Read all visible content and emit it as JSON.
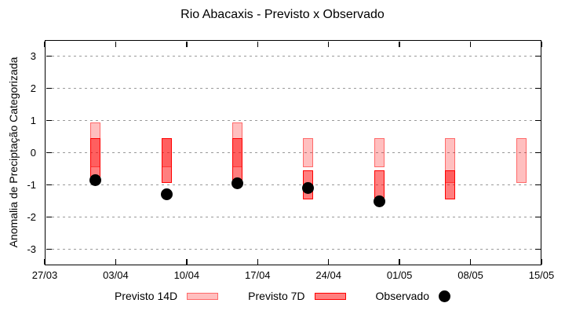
{
  "title": "Rio Abacaxis - Previsto x Observado",
  "y_axis_label": "Anomalia de Preciptação Categorizada",
  "legend": {
    "previsto_14d": "Previsto 14D",
    "previsto_7d": "Previsto 7D",
    "observado": "Observado"
  },
  "colors": {
    "bar_fill_14d": "rgba(255,0,0,0.25)",
    "bar_border_14d": "rgba(255,0,0,0.45)",
    "bar_fill_7d": "rgba(255,0,0,0.5)",
    "bar_border_7d": "#ff0000",
    "observado_dot": "#000000",
    "grid": "#9a9a9a",
    "frame": "#000000"
  },
  "chart_data": {
    "type": "bar",
    "subtype": "forecast-range-bars-with-observed-scatter",
    "title": "Rio Abacaxis - Previsto x Observado",
    "xlabel": "",
    "ylabel": "Anomalia de Preciptação Categorizada",
    "ylim": [
      -3.5,
      3.5
    ],
    "yticks": [
      3,
      2,
      1,
      0,
      -1,
      -2,
      -3
    ],
    "xtick_labels": [
      "27/03",
      "03/04",
      "10/04",
      "17/04",
      "24/04",
      "01/05",
      "08/05",
      "15/05"
    ],
    "xtick_days": [
      0,
      7,
      14,
      21,
      28,
      35,
      42,
      49
    ],
    "x_total_days": 49,
    "grid": "horizontal-dashed",
    "legend_position": "bottom-center",
    "categories": [
      "01/04",
      "08/04",
      "15/04",
      "22/04",
      "29/04",
      "06/05",
      "13/05"
    ],
    "category_days": [
      5,
      12,
      19,
      26,
      33,
      40,
      47
    ],
    "series": [
      {
        "name": "Previsto 14D",
        "type": "range-bar",
        "ranges_low_high": [
          [
            -0.45,
            0.95
          ],
          [
            -0.45,
            0.45
          ],
          [
            -0.45,
            0.95
          ],
          [
            -0.45,
            0.45
          ],
          [
            -0.45,
            0.45
          ],
          [
            -0.95,
            0.45
          ],
          [
            -0.95,
            0.45
          ]
        ]
      },
      {
        "name": "Previsto 7D",
        "type": "range-bar",
        "ranges_low_high": [
          [
            -0.95,
            0.45
          ],
          [
            -0.95,
            0.45
          ],
          [
            -0.95,
            0.45
          ],
          [
            -1.45,
            -0.55
          ],
          [
            -1.45,
            -0.55
          ],
          [
            -1.45,
            -0.55
          ],
          null
        ]
      },
      {
        "name": "Observado",
        "type": "scatter",
        "values": [
          -0.85,
          -1.3,
          -0.95,
          -1.1,
          -1.5,
          null,
          null
        ]
      }
    ]
  }
}
